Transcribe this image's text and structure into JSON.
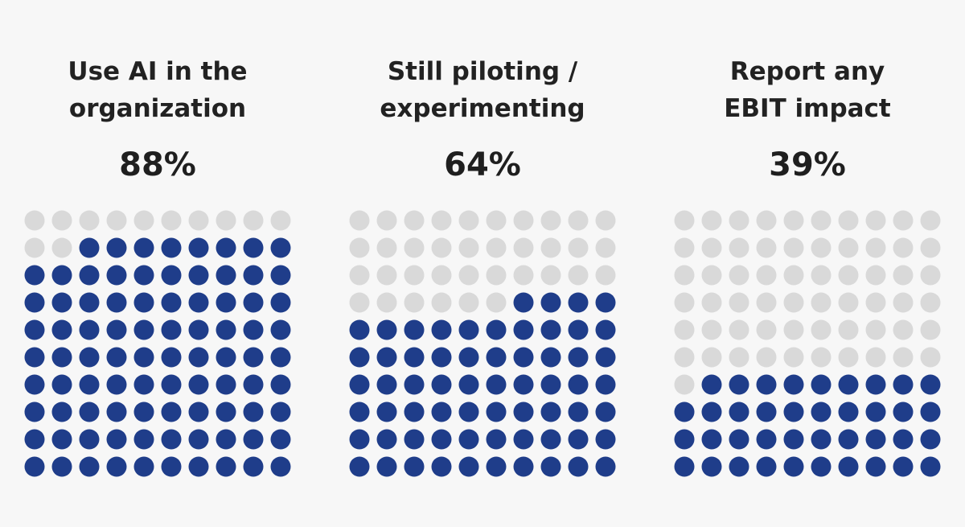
{
  "chart_data": [
    {
      "type": "waffle",
      "title_lines": [
        "Use AI in the",
        "organization"
      ],
      "value_label": "88%",
      "value": 88,
      "total": 100,
      "grid": {
        "rows": 10,
        "cols": 10
      },
      "fill_order": "bottom-up, right-aligned"
    },
    {
      "type": "waffle",
      "title_lines": [
        "Still piloting /",
        "experimenting"
      ],
      "value_label": "64%",
      "value": 64,
      "total": 100,
      "grid": {
        "rows": 10,
        "cols": 10
      },
      "fill_order": "bottom-up, right-aligned"
    },
    {
      "type": "waffle",
      "title_lines": [
        "Report any",
        "EBIT impact"
      ],
      "value_label": "39%",
      "value": 39,
      "total": 100,
      "grid": {
        "rows": 10,
        "cols": 10
      },
      "fill_order": "bottom-up, right-aligned"
    }
  ],
  "colors": {
    "filled": "#1f3d8a",
    "empty": "#d9d9d9",
    "background": "#f7f7f7"
  }
}
